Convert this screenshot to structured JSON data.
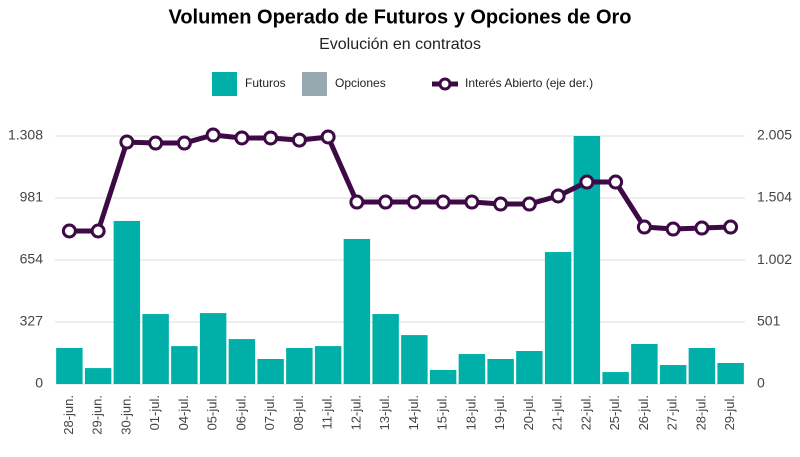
{
  "chart_data": {
    "type": "bar_line",
    "title": "Volumen Operado de Futuros y Opciones de Oro",
    "subtitle": "Evolución en contratos",
    "categories": [
      "28-jun.",
      "29-jun.",
      "30-jun.",
      "01-jul.",
      "04-jul.",
      "05-jul.",
      "06-jul.",
      "07-jul.",
      "08-jul.",
      "11-jul.",
      "12-jul.",
      "13-jul.",
      "14-jul.",
      "15-jul.",
      "18-jul.",
      "19-jul.",
      "20-jul.",
      "21-jul.",
      "22-jul.",
      "25-jul.",
      "26-jul.",
      "27-jul.",
      "28-jul.",
      "29-jul."
    ],
    "series": [
      {
        "name": "Futuros",
        "color": "#00b0a8",
        "type": "bar",
        "values": [
          190,
          84,
          860,
          369,
          200,
          374,
          237,
          132,
          190,
          200,
          765,
          369,
          258,
          74,
          158,
          132,
          174,
          696,
          1308,
          63,
          211,
          100,
          190,
          111
        ]
      },
      {
        "name": "Opciones",
        "color": "#98a8b0",
        "type": "bar",
        "values": [
          0,
          0,
          0,
          0,
          0,
          0,
          0,
          0,
          0,
          0,
          0,
          0,
          0,
          0,
          0,
          0,
          0,
          0,
          0,
          0,
          0,
          0,
          0,
          0
        ]
      },
      {
        "name": "Interés Abierto (eje der.)",
        "color": "#3d0a45",
        "type": "line",
        "axis": "y2",
        "values": [
          1237,
          1237,
          1956,
          1948,
          1948,
          2013,
          1989,
          1989,
          1972,
          1997,
          1471,
          1471,
          1471,
          1471,
          1471,
          1455,
          1455,
          1520,
          1633,
          1633,
          1269,
          1253,
          1261,
          1269
        ]
      }
    ],
    "ylim": [
      0,
      1308
    ],
    "yticks": [
      0,
      327,
      654,
      981,
      {
        "value": 1308,
        "label": "1.308"
      }
    ],
    "y2lim": [
      0,
      2005
    ],
    "y2ticks": [
      0,
      501,
      {
        "value": 1002,
        "label": "1.002"
      },
      {
        "value": 1504,
        "label": "1.504"
      },
      {
        "value": 2005,
        "label": "2.005"
      }
    ],
    "grid": true,
    "stacked": true,
    "legend": "top"
  }
}
